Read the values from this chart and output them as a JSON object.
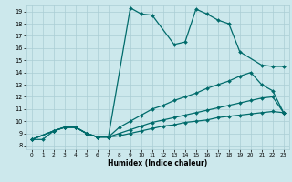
{
  "xlabel": "Humidex (Indice chaleur)",
  "bg_color": "#cce8ec",
  "line_color": "#006b6b",
  "grid_color": "#aacdd4",
  "xlim": [
    -0.5,
    23.5
  ],
  "ylim": [
    7.7,
    19.5
  ],
  "xticks": [
    0,
    1,
    2,
    3,
    4,
    5,
    6,
    7,
    8,
    9,
    10,
    11,
    12,
    13,
    14,
    15,
    16,
    17,
    18,
    19,
    20,
    21,
    22,
    23
  ],
  "yticks": [
    8,
    9,
    10,
    11,
    12,
    13,
    14,
    15,
    16,
    17,
    18,
    19
  ],
  "line1_x": [
    0,
    1,
    2,
    3,
    4,
    5,
    6,
    7,
    9,
    10,
    11,
    13,
    14,
    15,
    16,
    17,
    18,
    19,
    21,
    22,
    23
  ],
  "line1_y": [
    8.5,
    8.5,
    9.2,
    9.5,
    9.5,
    9.0,
    8.7,
    8.7,
    19.3,
    18.8,
    18.7,
    16.3,
    16.5,
    19.2,
    18.8,
    18.3,
    18.0,
    15.7,
    14.6,
    14.5,
    14.5
  ],
  "line2_x": [
    0,
    2,
    3,
    4,
    5,
    6,
    7,
    8,
    9,
    10,
    11,
    12,
    13,
    14,
    15,
    16,
    17,
    18,
    19,
    20,
    21,
    22,
    23
  ],
  "line2_y": [
    8.5,
    9.2,
    9.5,
    9.5,
    9.0,
    8.7,
    8.7,
    9.5,
    10.0,
    10.5,
    11.0,
    11.3,
    11.7,
    12.0,
    12.3,
    12.7,
    13.0,
    13.3,
    13.7,
    14.0,
    13.0,
    12.5,
    10.7
  ],
  "line3_x": [
    0,
    2,
    3,
    4,
    5,
    6,
    7,
    8,
    9,
    10,
    11,
    12,
    13,
    14,
    15,
    16,
    17,
    18,
    19,
    20,
    21,
    22,
    23
  ],
  "line3_y": [
    8.5,
    9.2,
    9.5,
    9.5,
    9.0,
    8.7,
    8.7,
    9.0,
    9.3,
    9.6,
    9.9,
    10.1,
    10.3,
    10.5,
    10.7,
    10.9,
    11.1,
    11.3,
    11.5,
    11.7,
    11.9,
    12.0,
    10.7
  ],
  "line4_x": [
    0,
    2,
    3,
    4,
    5,
    6,
    7,
    8,
    9,
    10,
    11,
    12,
    13,
    14,
    15,
    16,
    17,
    18,
    19,
    20,
    21,
    22,
    23
  ],
  "line4_y": [
    8.5,
    9.2,
    9.5,
    9.5,
    9.0,
    8.7,
    8.7,
    8.8,
    9.0,
    9.2,
    9.4,
    9.6,
    9.7,
    9.9,
    10.0,
    10.1,
    10.3,
    10.4,
    10.5,
    10.6,
    10.7,
    10.8,
    10.7
  ]
}
